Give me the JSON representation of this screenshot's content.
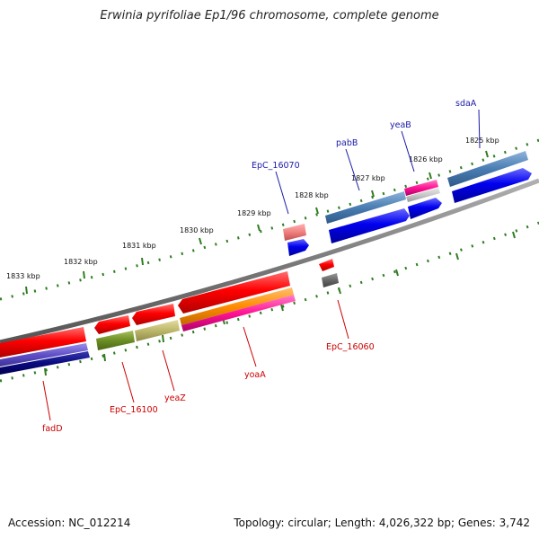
{
  "title": "Erwinia pyrifoliae Ep1/96 chromosome, complete genome",
  "footer": {
    "accession": "Accession: NC_012214",
    "stats": "Topology: circular; Length: 4,026,322 bp; Genes: 3,742"
  },
  "colors": {
    "backbone": "#808080",
    "tick": "#2e7d20",
    "forward_label": "#1a1aa8",
    "reverse_label": "#cc0000"
  },
  "kbp_labels": [
    "1825 kbp",
    "1826 kbp",
    "1827 kbp",
    "1828 kbp",
    "1829 kbp",
    "1830 kbp",
    "1831 kbp",
    "1832 kbp",
    "1833 kbp"
  ],
  "forward_gene_labels": [
    "sdaA",
    "yeaB",
    "pabB",
    "EpC_16070"
  ],
  "reverse_gene_labels": [
    "EpC_16060",
    "yoaA",
    "yeaZ",
    "EpC_16100",
    "fadD"
  ]
}
